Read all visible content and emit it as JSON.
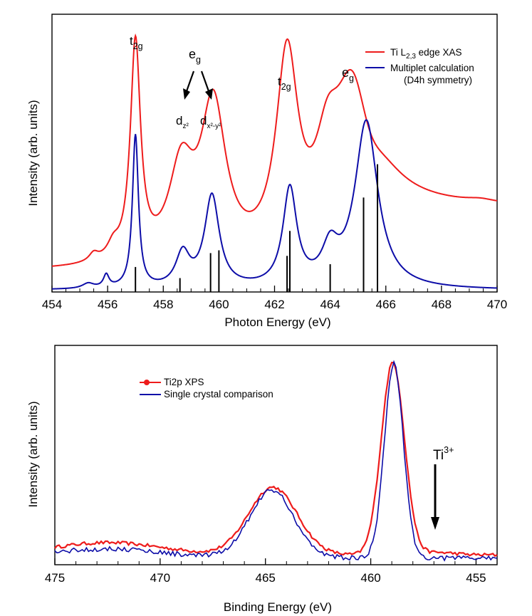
{
  "chart_data": [
    {
      "type": "line",
      "xlabel": "Photon Energy (eV)",
      "ylabel": "Intensity (arb. units)",
      "xlim": [
        454,
        470
      ],
      "ylim": [
        0,
        1.0
      ],
      "x_ticks": [
        "454",
        "456",
        "458",
        "460",
        "462",
        "464",
        "466",
        "468",
        "470"
      ],
      "x_tick_values": [
        454,
        456,
        458,
        460,
        462,
        464,
        466,
        468,
        470
      ],
      "legend": [
        {
          "label_main": "Ti L",
          "label_sub": "2,3",
          "label_tail": " edge XAS",
          "color": "#ee1c1c"
        },
        {
          "label_main": "Multiplet calculation",
          "label_sub": "",
          "label_tail": "",
          "label_line2": "(D4h symmetry)",
          "color": "#0d0da8"
        }
      ],
      "series": [
        {
          "name": "Ti L2,3 edge XAS",
          "color": "#ee1c1c",
          "baseline": 0.072,
          "tail": {
            "start": 465.6,
            "level": 0.23
          },
          "peaks": [
            [
              455.5,
              0.028,
              0.2
            ],
            [
              456.2,
              0.045,
              0.25
            ],
            [
              457.0,
              0.78,
              0.22
            ],
            [
              458.65,
              0.32,
              0.55
            ],
            [
              459.8,
              0.55,
              0.55
            ],
            [
              462.45,
              0.71,
              0.48
            ],
            [
              463.9,
              0.28,
              0.55
            ],
            [
              464.8,
              0.6,
              0.8
            ],
            [
              469.4,
              0.01,
              0.6
            ]
          ]
        },
        {
          "name": "Multiplet calculation (D4h symmetry)",
          "color": "#0d0da8",
          "baseline": 0.006,
          "tail": {
            "start": 0,
            "level": 0
          },
          "peaks": [
            [
              455.3,
              0.018,
              0.25
            ],
            [
              455.95,
              0.045,
              0.12
            ],
            [
              457.0,
              0.55,
              0.13
            ],
            [
              458.7,
              0.12,
              0.3
            ],
            [
              459.75,
              0.33,
              0.32
            ],
            [
              462.55,
              0.35,
              0.3
            ],
            [
              464.0,
              0.12,
              0.35
            ],
            [
              465.3,
              0.6,
              0.5
            ]
          ]
        }
      ],
      "sticks": [
        {
          "x": 457.0,
          "h": 0.09
        },
        {
          "x": 458.6,
          "h": 0.05
        },
        {
          "x": 459.7,
          "h": 0.14
        },
        {
          "x": 460.0,
          "h": 0.15
        },
        {
          "x": 462.45,
          "h": 0.13
        },
        {
          "x": 462.55,
          "h": 0.22
        },
        {
          "x": 464.0,
          "h": 0.1
        },
        {
          "x": 465.2,
          "h": 0.34
        },
        {
          "x": 465.7,
          "h": 0.46
        }
      ],
      "annotations": {
        "t2g_1": {
          "main": "t",
          "sub": "2g"
        },
        "eg_1": {
          "main": "e",
          "sub": "g"
        },
        "dz2": {
          "main": "d",
          "sub": "z²"
        },
        "dx2y2": {
          "main": "d",
          "sub": "x²-y²"
        },
        "t2g_2": {
          "main": "t",
          "sub": "2g"
        },
        "eg_2": {
          "main": "e",
          "sub": "g"
        }
      }
    },
    {
      "type": "line",
      "xlabel": "Binding Energy (eV)",
      "ylabel": "Intensity (arb. units)",
      "xlim": [
        475,
        454
      ],
      "ylim": [
        0,
        1.0
      ],
      "x_ticks": [
        "475",
        "470",
        "465",
        "460",
        "455"
      ],
      "x_tick_values": [
        475,
        470,
        465,
        460,
        455
      ],
      "legend": [
        {
          "label": "Ti2p XPS",
          "color": "#ee1c1c",
          "marker": "circle"
        },
        {
          "label": "Single crystal comparison",
          "color": "#0d0da8"
        }
      ],
      "series": [
        {
          "name": "Ti2p XPS",
          "color": "#ee1c1c",
          "baseline": 0.02,
          "noise": 0.008,
          "peaks": [
            [
              458.95,
              0.94,
              0.55
            ],
            [
              464.65,
              0.33,
              1.15
            ],
            [
              472.5,
              0.06,
              2.6
            ],
            [
              456.8,
              0.012,
              0.8
            ]
          ]
        },
        {
          "name": "Single crystal comparison",
          "color": "#0d0da8",
          "baseline": 0.005,
          "noise": 0.012,
          "peaks": [
            [
              458.9,
              0.95,
              0.45
            ],
            [
              464.7,
              0.33,
              1.05
            ],
            [
              472.5,
              0.045,
              2.6
            ]
          ]
        }
      ],
      "annotations": {
        "ti3": {
          "main": "Ti",
          "sup": "3+",
          "x": 457.0
        }
      }
    }
  ]
}
